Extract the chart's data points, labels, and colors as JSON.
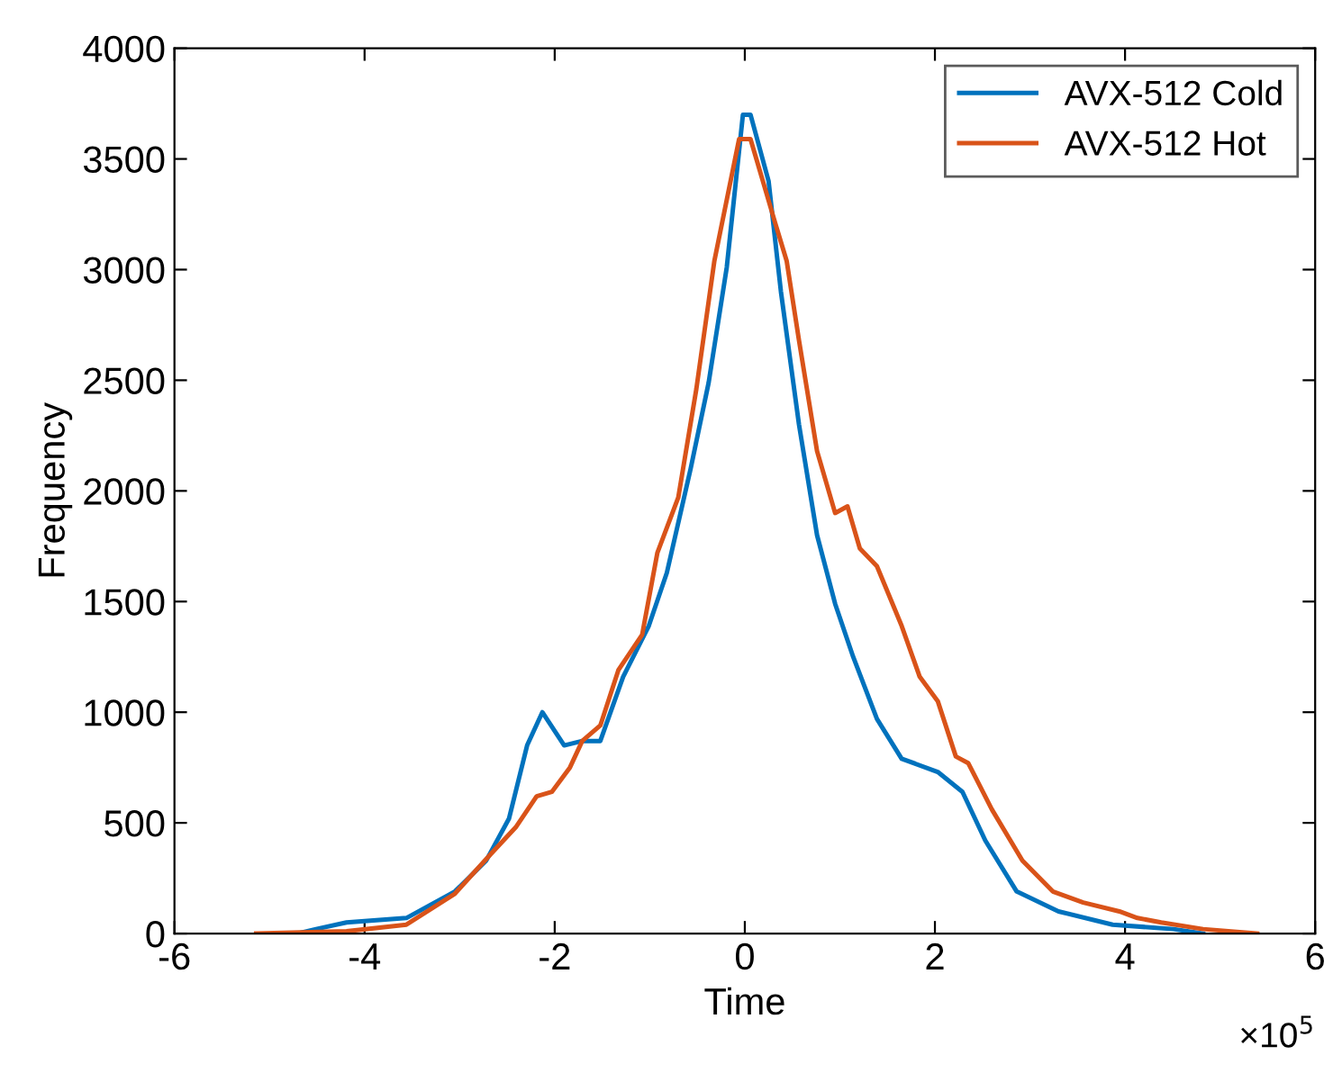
{
  "chart_data": {
    "type": "line",
    "xlabel": "Time",
    "ylabel": "Frequency",
    "annotations": [
      "×10$^{5}$"
    ],
    "xlim": [
      -6,
      6
    ],
    "xticks": [
      -6,
      -4,
      -2,
      0,
      2,
      4,
      6
    ],
    "ylim": [
      0,
      4000
    ],
    "yticks": [
      0,
      500,
      1000,
      1500,
      2000,
      2500,
      3000,
      3500,
      4000
    ],
    "grid": false,
    "legend": "top right",
    "marker": "none",
    "line_style": "solid",
    "series": [
      {
        "name": "AVX-512 Cold",
        "color": "#0072bd",
        "x": [
          -4.7,
          -4.51,
          -4.19,
          -3.56,
          -3.05,
          -2.72,
          -2.48,
          -2.29,
          -2.13,
          -1.9,
          -1.71,
          -1.52,
          -1.28,
          -1.01,
          -0.82,
          -0.57,
          -0.38,
          -0.19,
          -0.02,
          0.06,
          0.25,
          0.38,
          0.57,
          0.76,
          0.95,
          1.14,
          1.39,
          1.65,
          2.03,
          2.29,
          2.53,
          2.86,
          3.3,
          3.87,
          4.51,
          4.82
        ],
        "values": [
          0,
          20,
          50,
          70,
          190,
          330,
          520,
          850,
          1000,
          850,
          870,
          870,
          1160,
          1390,
          1630,
          2100,
          2490,
          3010,
          3700,
          3700,
          3400,
          2900,
          2300,
          1800,
          1490,
          1250,
          970,
          790,
          730,
          640,
          420,
          190,
          100,
          40,
          20,
          0
        ]
      },
      {
        "name": "AVX-512 Hot",
        "color": "#d95319",
        "x": [
          -5.14,
          -4.19,
          -3.56,
          -3.05,
          -2.67,
          -2.41,
          -2.19,
          -2.03,
          -1.84,
          -1.71,
          -1.52,
          -1.33,
          -1.08,
          -0.92,
          -0.7,
          -0.51,
          -0.32,
          -0.06,
          0,
          0.06,
          0.32,
          0.44,
          0.57,
          0.76,
          0.95,
          1.08,
          1.21,
          1.39,
          1.65,
          1.84,
          2.03,
          2.22,
          2.35,
          2.6,
          2.92,
          3.24,
          3.56,
          3.94,
          4.13,
          4.38,
          4.82,
          5.39
        ],
        "values": [
          0,
          10,
          40,
          180,
          360,
          480,
          620,
          640,
          750,
          870,
          940,
          1190,
          1350,
          1720,
          1970,
          2460,
          3040,
          3590,
          3590,
          3590,
          3210,
          3040,
          2680,
          2180,
          1900,
          1930,
          1740,
          1660,
          1390,
          1160,
          1050,
          800,
          770,
          560,
          330,
          190,
          140,
          100,
          70,
          50,
          20,
          0
        ]
      }
    ]
  }
}
